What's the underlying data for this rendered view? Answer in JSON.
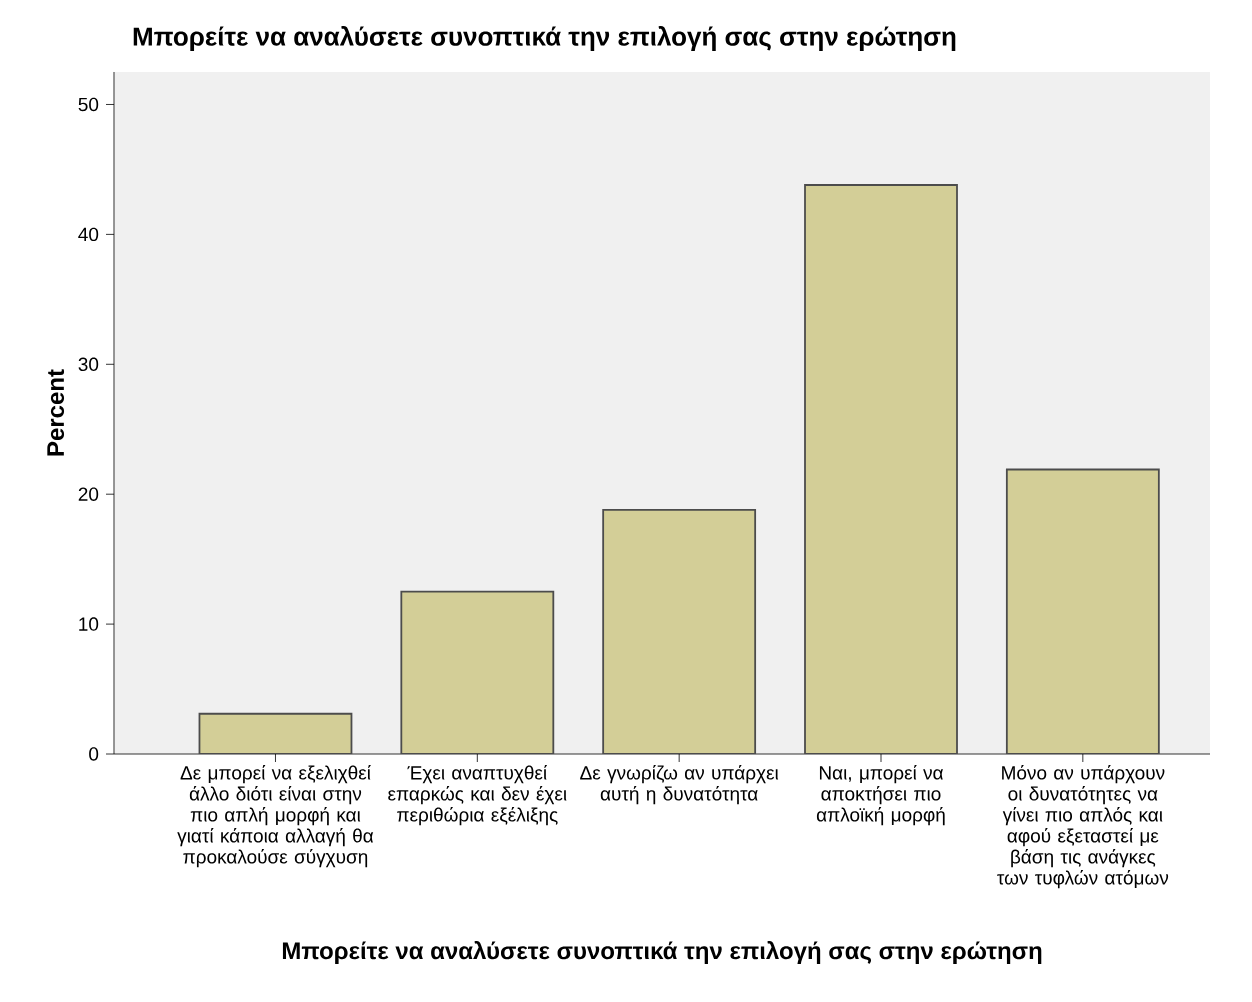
{
  "chart_data": {
    "type": "bar",
    "title": "Μπορείτε να αναλύσετε συνοπτικά την επιλογή σας στην ερώτηση",
    "xlabel": "Μπορείτε να αναλύσετε συνοπτικά την επιλογή σας στην ερώτηση",
    "ylabel": "Percent",
    "categories": [
      "Δε μπορεί να εξελιχθεί άλλο διότι είναι στην πιο απλή μορφή και γιατί κάποια αλλαγή θα προκαλούσε σύγχυση",
      "Έχει αναπτυχθεί επαρκώς και δεν έχει περιθώρια εξέλιξης",
      "Δε γνωρίζω αν υπάρχει αυτή η δυνατότητα",
      "Ναι, μπορεί να αποκτήσει πιο απλοϊκή μορφή",
      "Μόνο αν υπάρχουν οι δυνατότητες να γίνει πιο απλός και αφού εξεταστεί με βάση τις ανάγκες των τυφλών ατόμων"
    ],
    "values": [
      3.1,
      12.5,
      18.8,
      43.8,
      21.9
    ],
    "color": "#d3ce97",
    "ylim": [
      0,
      52.5
    ],
    "yticks": [
      0,
      10,
      20,
      30,
      40,
      50
    ]
  }
}
